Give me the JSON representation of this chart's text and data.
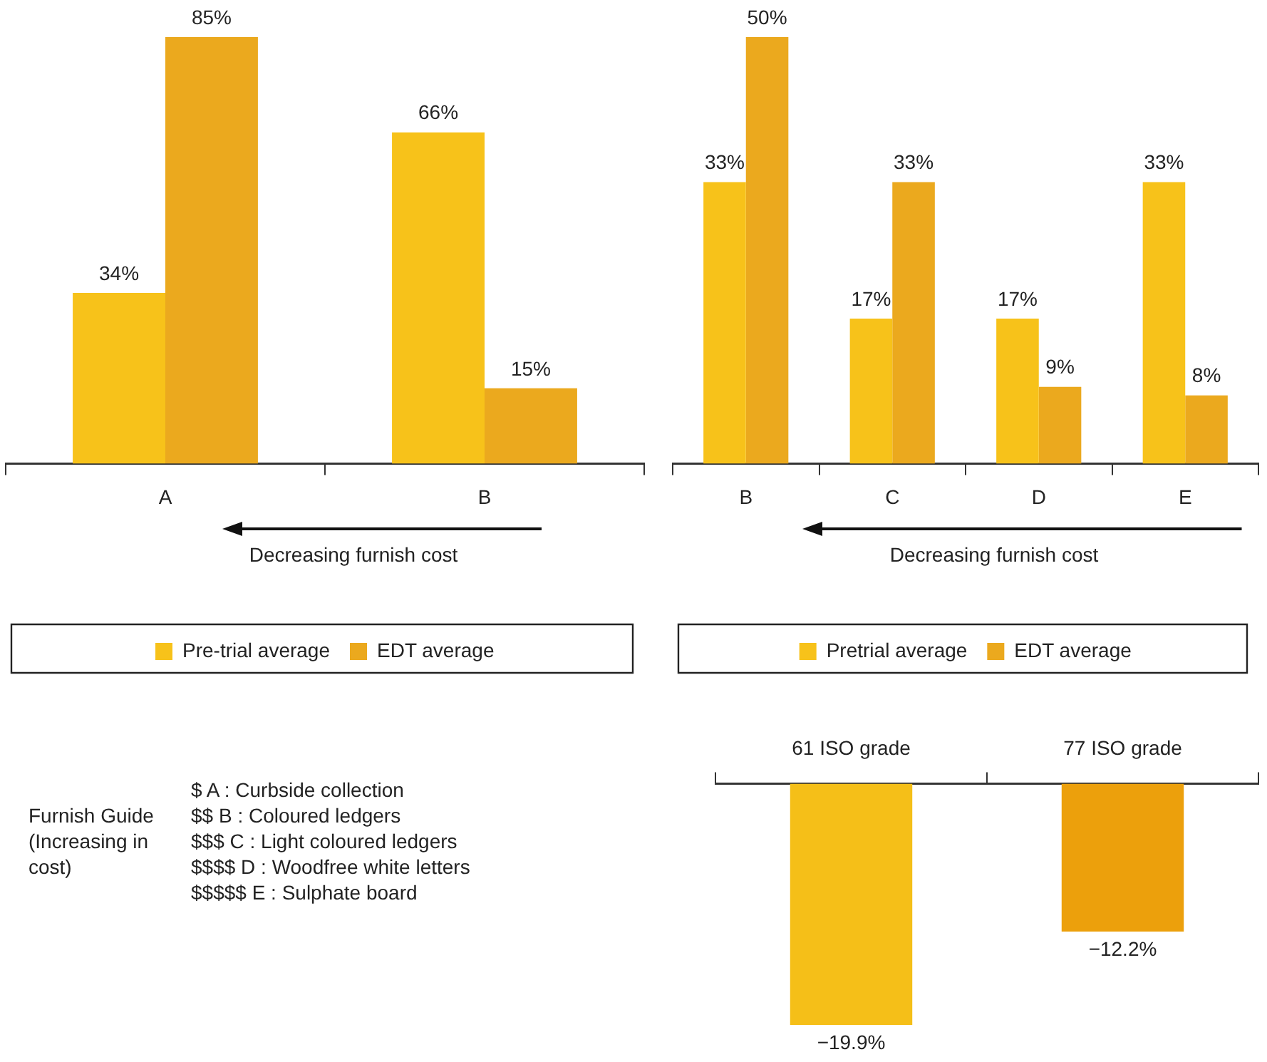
{
  "chart_data": [
    {
      "type": "bar",
      "categories": [
        "A",
        "B"
      ],
      "legend": "bottom",
      "annotations": [
        "Decreasing furnish cost"
      ],
      "series": [
        {
          "name": "Pre-trial average",
          "color": "#f7c21a",
          "values": [
            34,
            66
          ],
          "value_labels": [
            "34%",
            "66%"
          ]
        },
        {
          "name": "EDT average",
          "color": "#eba91e",
          "values": [
            85,
            15
          ],
          "value_labels": [
            "85%",
            "15%"
          ]
        }
      ]
    },
    {
      "type": "bar",
      "categories": [
        "B",
        "C",
        "D",
        "E"
      ],
      "legend": "bottom",
      "annotations": [
        "Decreasing furnish cost"
      ],
      "series": [
        {
          "name": "Pretrial average",
          "color": "#f7c21a",
          "values": [
            33,
            17,
            17,
            33
          ],
          "value_labels": [
            "33%",
            "17%",
            "17%",
            "33%"
          ]
        },
        {
          "name": "EDT average",
          "color": "#eba91e",
          "values": [
            50,
            33,
            9,
            8
          ],
          "value_labels": [
            "50%",
            "33%",
            "9%",
            "8%"
          ]
        }
      ]
    },
    {
      "type": "other",
      "title": "Furnish Guide (Increasing in cost)",
      "annotations": [
        "$ A : Curbside collection",
        "$$ B : Coloured ledgers",
        "$$$ C : Light coloured ledgers",
        "$$$$ D : Woodfree white letters",
        "$$$$$ E : Sulphate board"
      ]
    },
    {
      "type": "bar",
      "categories": [
        "61 ISO grade",
        "77 ISO grade"
      ],
      "values": [
        -19.9,
        -12.2
      ],
      "colors": [
        "#f5bf18",
        "#eca00c"
      ],
      "value_labels": [
        "−19.9%",
        "−12.2%"
      ]
    }
  ]
}
